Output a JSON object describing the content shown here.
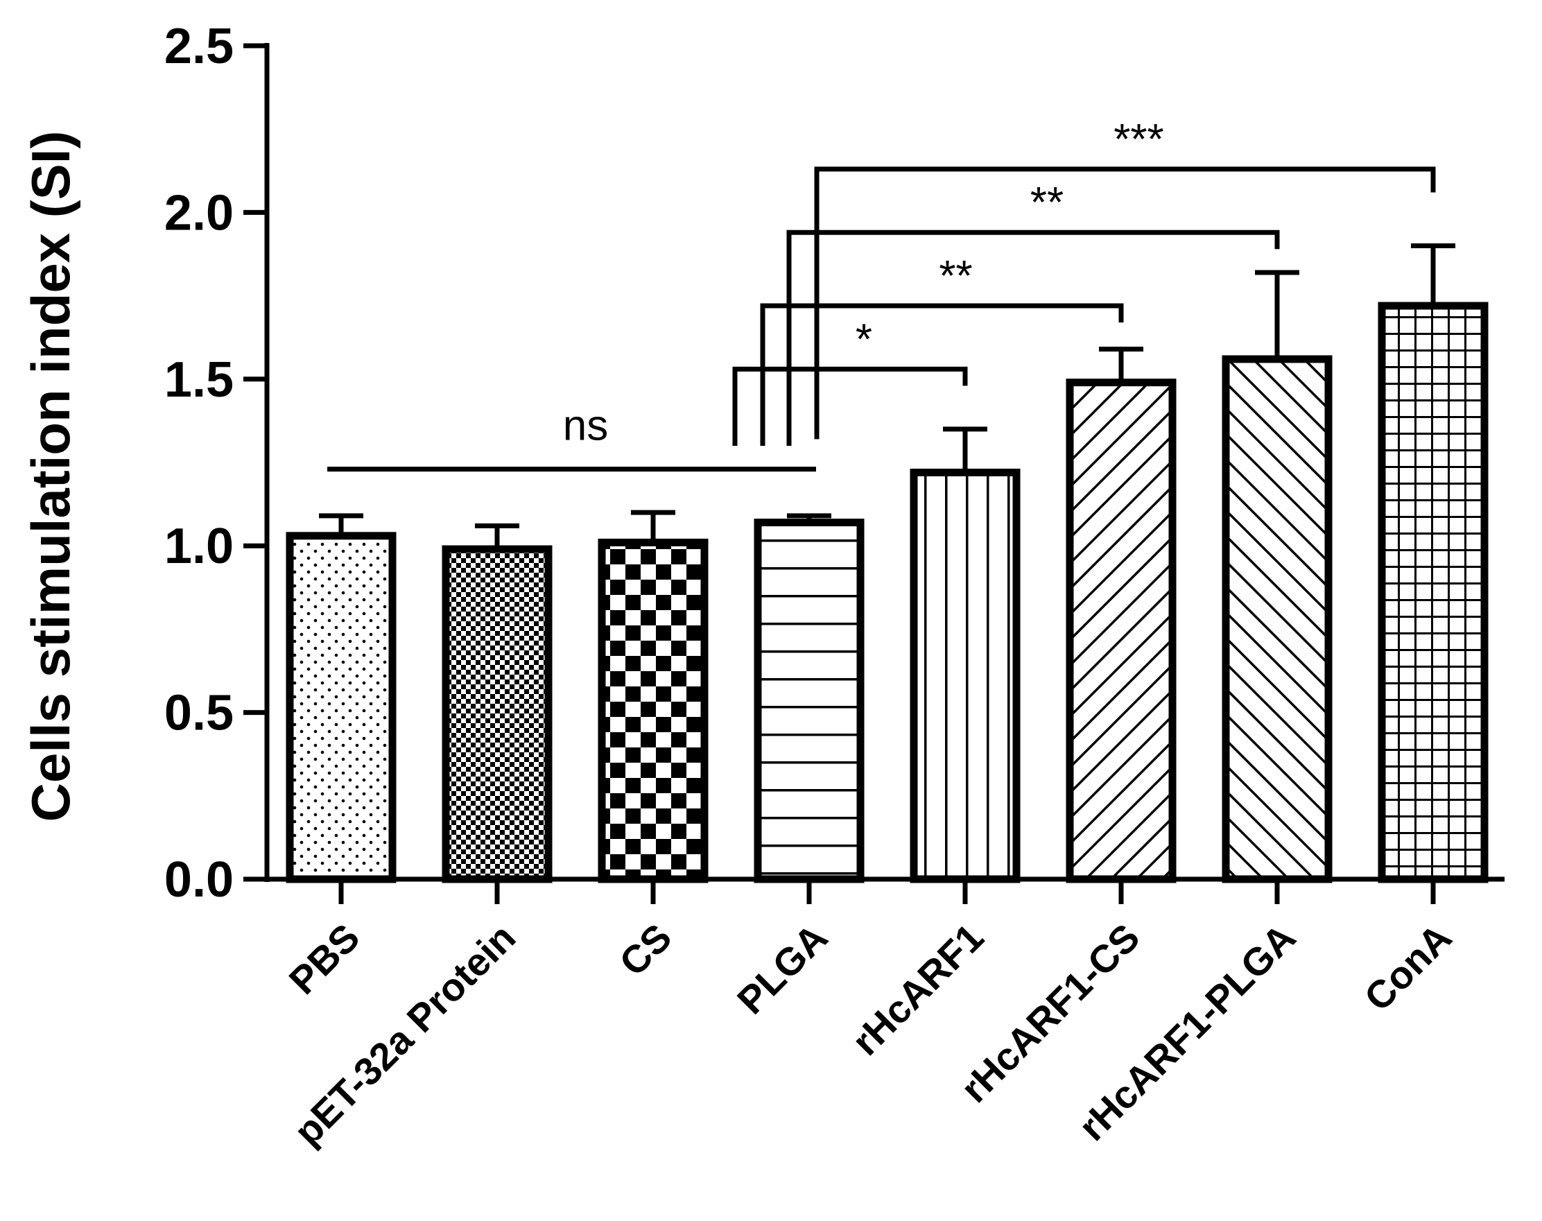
{
  "chart_data": {
    "type": "bar",
    "ylabel": "Cells stimulation index (SI)",
    "xlabel": "",
    "ylim": [
      0,
      2.5
    ],
    "yticks": [
      {
        "value": 0.0,
        "label": "0.0"
      },
      {
        "value": 0.5,
        "label": "0.5"
      },
      {
        "value": 1.0,
        "label": "1.0"
      },
      {
        "value": 1.5,
        "label": "1.5"
      },
      {
        "value": 2.0,
        "label": "2.0"
      },
      {
        "value": 2.5,
        "label": "2.5"
      }
    ],
    "grid": false,
    "categories": [
      "PBS",
      "pET-32a Protein",
      "CS",
      "PLGA",
      "rHcARF1",
      "rHcARF1-CS",
      "rHcARF1-PLGA",
      "ConA"
    ],
    "values": [
      1.03,
      0.99,
      1.01,
      1.07,
      1.22,
      1.49,
      1.56,
      1.72
    ],
    "errors": [
      0.06,
      0.07,
      0.09,
      0.02,
      0.13,
      0.1,
      0.26,
      0.18
    ],
    "patterns": [
      "dots",
      "fine-checker",
      "checker",
      "horizontal-lines",
      "vertical-lines",
      "diagonal-up",
      "diagonal-down",
      "grid"
    ],
    "significance": [
      {
        "label": "ns",
        "type": "span",
        "from": 0,
        "to": 3,
        "level": 1.23
      },
      {
        "label": "*",
        "type": "pair",
        "from": 3,
        "to": 4,
        "level": 1.53,
        "drop_from": 1.3,
        "drop_to": 1.48
      },
      {
        "label": "**",
        "type": "pair",
        "from": 3,
        "to": 5,
        "level": 1.72,
        "drop_from": 1.3,
        "drop_to": 1.67
      },
      {
        "label": "**",
        "type": "pair",
        "from": 3,
        "to": 6,
        "level": 1.94,
        "drop_from": 1.3,
        "drop_to": 1.89
      },
      {
        "label": "***",
        "type": "pair",
        "from": 3,
        "to": 7,
        "level": 2.13,
        "drop_from": 1.32,
        "drop_to": 2.06
      }
    ]
  }
}
